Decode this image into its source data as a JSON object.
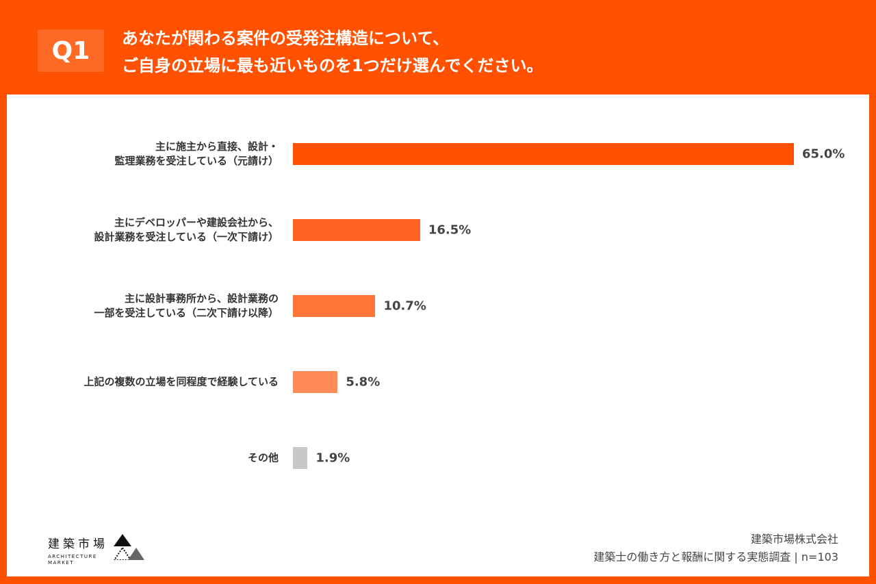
{
  "header": {
    "badge": "Q1",
    "title_line1": "あなたが関わる案件の受発注構造について、",
    "title_line2": "ご自身の立場に最も近いものを1つだけ選んでください。"
  },
  "chart_data": {
    "type": "bar",
    "orientation": "horizontal",
    "categories": [
      [
        "主に施主から直接、設計・",
        "監理業務を受注している（元請け）"
      ],
      [
        "主にデベロッパーや建設会社から、",
        "設計業務を受注している（一次下請け）"
      ],
      [
        "主に設計事務所から、設計業務の",
        "一部を受注している（二次下請け以降）"
      ],
      [
        "上記の複数の立場を同程度で経験している"
      ],
      [
        "その他"
      ]
    ],
    "values": [
      65.0,
      16.5,
      10.7,
      5.8,
      1.9
    ],
    "labels": [
      "65.0%",
      "16.5%",
      "10.7%",
      "5.8%",
      "1.9%"
    ],
    "colors": [
      "#ff5100",
      "#ff6222",
      "#ff7638",
      "#ff8c58",
      "#c8c8c8"
    ],
    "unit": "%",
    "grid": false
  },
  "footer": {
    "logo_text": "建築市場",
    "logo_sub1": "ARCHITECTURE",
    "logo_sub2": "MARKET",
    "company": "建築市場株式会社",
    "survey": "建築士の働き方と報酬に関する実態調査 | n=103"
  }
}
